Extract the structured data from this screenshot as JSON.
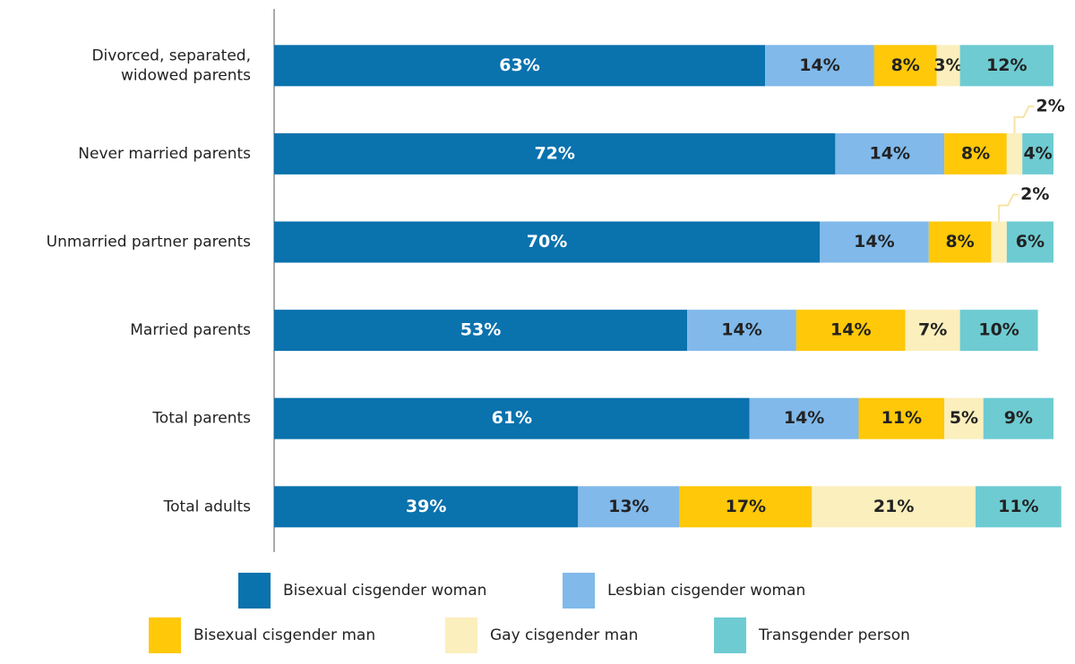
{
  "chart_data": {
    "type": "stacked_bar_horizontal",
    "categories": [
      "Divorced, separated,\nwidowed parents",
      "Never married parents",
      "Unmarried partner parents",
      "Married parents",
      "Total parents",
      "Total adults"
    ],
    "xlim": [
      0,
      100
    ],
    "series": [
      {
        "name": "Bisexual cisgender woman",
        "color": "#0a72ad",
        "values": [
          63,
          72,
          70,
          53,
          61,
          39
        ],
        "value_labels": [
          "63%",
          "72%",
          "70%",
          "53%",
          "61%",
          "39%"
        ]
      },
      {
        "name": "Lesbian cisgender woman",
        "color": "#80b9ea",
        "values": [
          14,
          14,
          14,
          14,
          14,
          13
        ],
        "value_labels": [
          "14%",
          "14%",
          "14%",
          "14%",
          "14%",
          "13%"
        ]
      },
      {
        "name": "Bisexual cisgender man",
        "color": "#ffc808",
        "values": [
          8,
          8,
          8,
          14,
          11,
          17
        ],
        "value_labels": [
          "8%",
          "8%",
          "8%",
          "14%",
          "11%",
          "17%"
        ]
      },
      {
        "name": "Gay cisgender man",
        "color": "#fbefbd",
        "values": [
          3,
          2,
          2,
          7,
          5,
          21
        ],
        "value_labels": [
          "3%",
          "2%",
          "2%",
          "7%",
          "5%",
          "21%"
        ]
      },
      {
        "name": "Transgender person",
        "color": "#6ecbd2",
        "values": [
          12,
          4,
          6,
          10,
          9,
          11
        ],
        "value_labels": [
          "12%",
          "4%",
          "6%",
          "10%",
          "9%",
          "11%"
        ]
      }
    ]
  }
}
